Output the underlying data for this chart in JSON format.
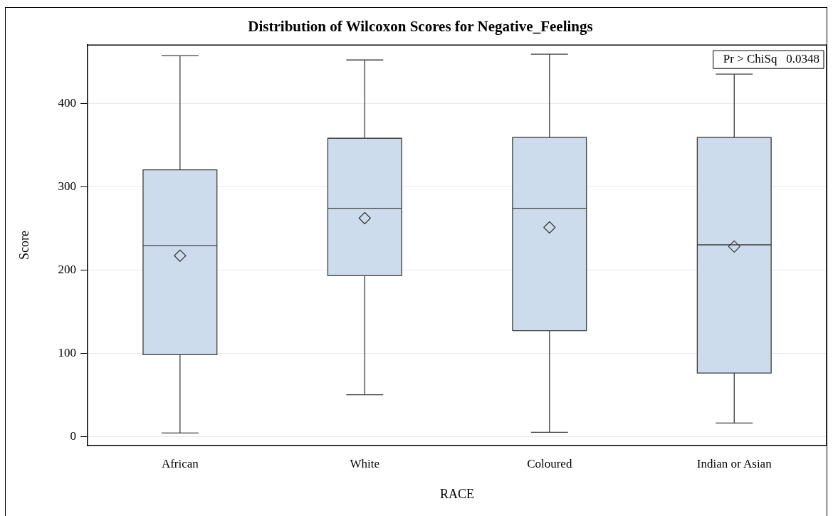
{
  "chart_data": {
    "type": "box",
    "title": "Distribution of Wilcoxon Scores for Negative_Feelings",
    "xlabel": "RACE",
    "ylabel": "Score",
    "categories": [
      "African",
      "White",
      "Coloured",
      "Indian or Asian"
    ],
    "boxes": [
      {
        "low": 4,
        "q1": 98,
        "median": 229,
        "q3": 320,
        "high": 457,
        "mean": 217
      },
      {
        "low": 50,
        "q1": 193,
        "median": 274,
        "q3": 358,
        "high": 452,
        "mean": 262
      },
      {
        "low": 5,
        "q1": 127,
        "median": 274,
        "q3": 359,
        "high": 459,
        "mean": 251
      },
      {
        "low": 16,
        "q1": 76,
        "median": 230,
        "q3": 359,
        "high": 435,
        "mean": 228
      }
    ],
    "color": "#cddcec",
    "marker": "diamond",
    "ylim": [
      -11,
      470
    ],
    "yticks": [
      0,
      100,
      200,
      300,
      400
    ],
    "grid": "y",
    "legend": false,
    "annotations": [
      "Pr > ChiSq   0.0348"
    ]
  }
}
